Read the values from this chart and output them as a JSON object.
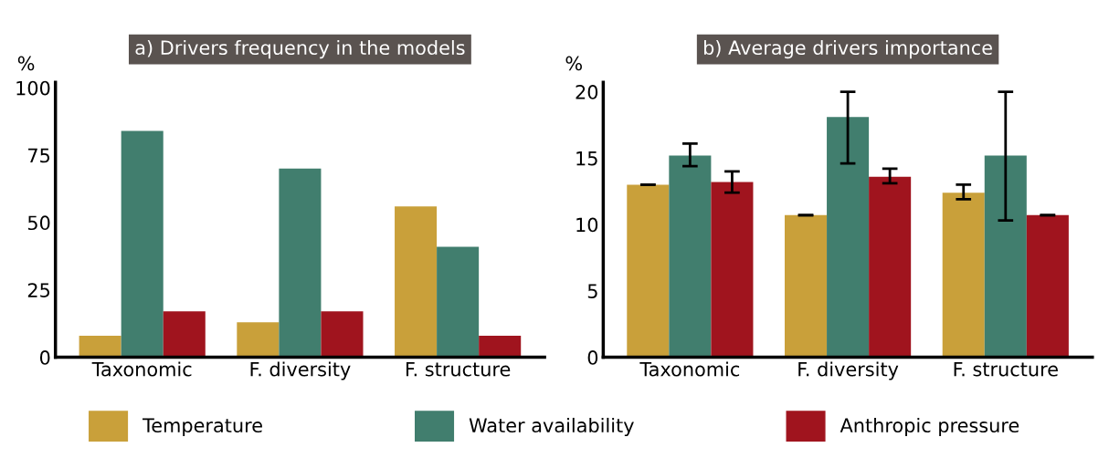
{
  "chart_data": [
    {
      "type": "bar",
      "title": "a) Drivers frequency in the models",
      "ylabel": "%",
      "categories": [
        "Taxonomic",
        "F. diversity",
        "F. structure"
      ],
      "ylim": [
        0,
        102
      ],
      "yticks": [
        0,
        25,
        50,
        75,
        100
      ],
      "grid": false,
      "legend": "bottom",
      "series": [
        {
          "name": "Temperature",
          "color": "#c9a03a",
          "values": [
            8,
            13,
            56
          ]
        },
        {
          "name": "Water availability",
          "color": "#417e6e",
          "values": [
            84,
            70,
            41
          ]
        },
        {
          "name": "Anthropic pressure",
          "color": "#a0141e",
          "values": [
            17,
            17,
            8
          ]
        }
      ]
    },
    {
      "type": "bar",
      "title": "b) Average drivers importance",
      "ylabel": "%",
      "categories": [
        "Taxonomic",
        "F. diversity",
        "F. structure"
      ],
      "ylim": [
        0,
        20.7
      ],
      "yticks": [
        0,
        5,
        10,
        15,
        20
      ],
      "grid": false,
      "series": [
        {
          "name": "Temperature",
          "color": "#c9a03a",
          "values": [
            13.0,
            10.7,
            12.4
          ],
          "errors": [
            0,
            0,
            [
              11.9,
              13.0
            ]
          ]
        },
        {
          "name": "Water availability",
          "color": "#417e6e",
          "values": [
            15.2,
            18.1,
            15.2
          ],
          "errors": [
            [
              14.4,
              16.1
            ],
            [
              14.6,
              20.0
            ],
            [
              10.3,
              20.0
            ]
          ]
        },
        {
          "name": "Anthropic pressure",
          "color": "#a0141e",
          "values": [
            13.2,
            13.6,
            10.7
          ],
          "errors": [
            [
              12.4,
              14.0
            ],
            [
              13.1,
              14.2
            ],
            0
          ]
        }
      ]
    }
  ]
}
